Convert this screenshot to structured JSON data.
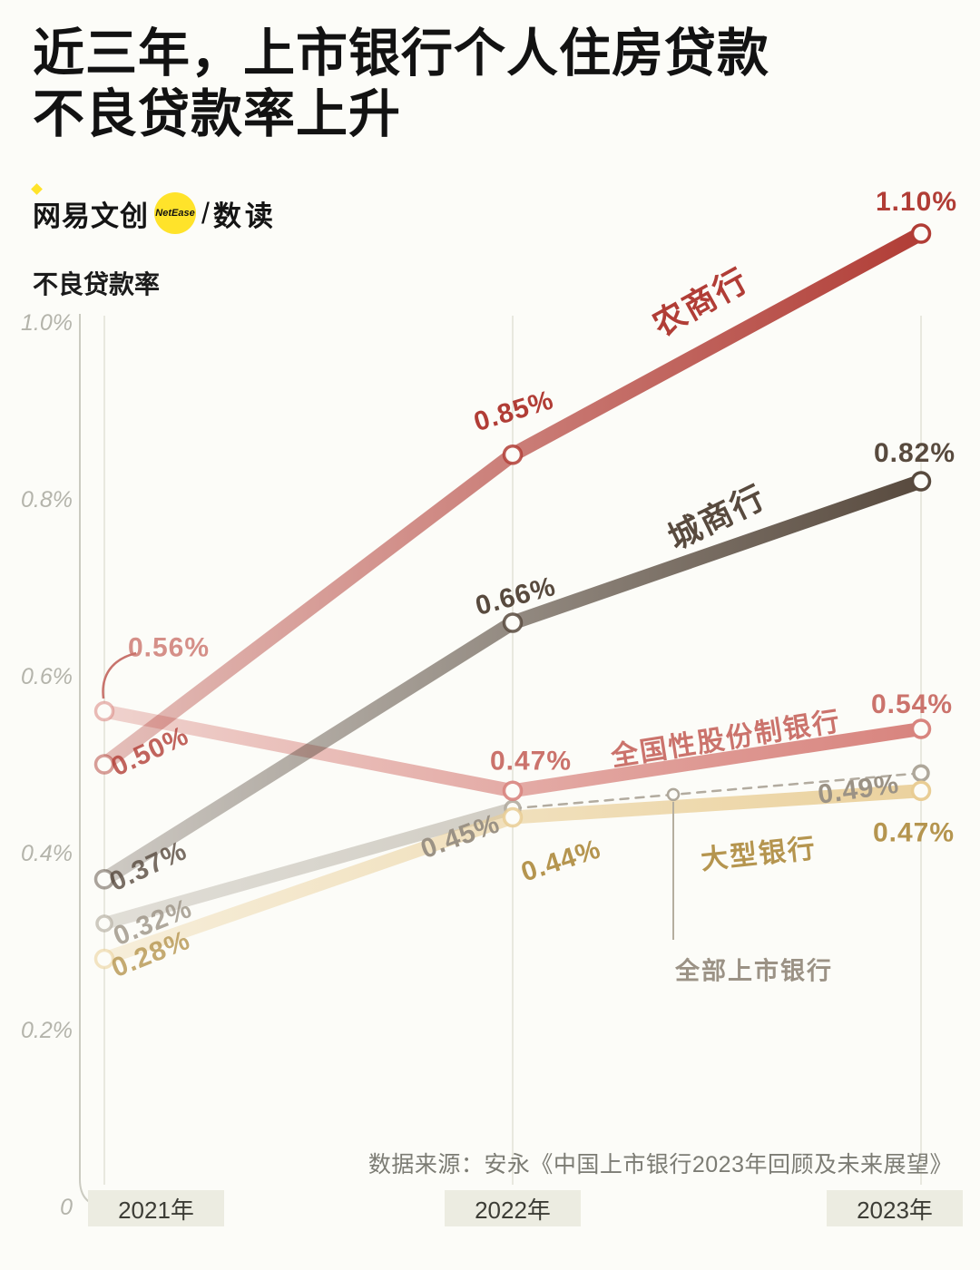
{
  "meta": {
    "title_line1": "近三年，上市银行个人住房贷款",
    "title_line2": "不良贷款率上升",
    "axis_title": "不良贷款率",
    "source": "数据来源：安永《中国上市银行2023年回顾及未来展望》"
  },
  "brand": {
    "name": "网易文创",
    "badge": "NetEase",
    "slash": "/",
    "sub": "数读",
    "badge_color": "#ffe32a"
  },
  "chart_data": {
    "type": "line",
    "title": "近三年，上市银行个人住房贷款不良贷款率上升",
    "ylabel": "不良贷款率",
    "unit": "%",
    "categories": [
      "2021年",
      "2022年",
      "2023年"
    ],
    "ylim": [
      0,
      1.15
    ],
    "grid": "vertical-only",
    "legend_position": "inline-labels",
    "yticks": [
      {
        "label": "1.0%",
        "value": 1.0
      },
      {
        "label": "0.8%",
        "value": 0.8
      },
      {
        "label": "0.6%",
        "value": 0.6
      },
      {
        "label": "0.4%",
        "value": 0.4
      },
      {
        "label": "0.2%",
        "value": 0.2
      },
      {
        "label": "0",
        "value": 0
      }
    ],
    "series": [
      {
        "id": "rural",
        "name": "农商行",
        "color": "#b13d36",
        "values": [
          0.5,
          0.85,
          1.1
        ],
        "labels": [
          "0.50%",
          "0.85%",
          "1.10%"
        ]
      },
      {
        "id": "city",
        "name": "城商行",
        "color": "#584a3e",
        "values": [
          0.37,
          0.66,
          0.82
        ],
        "labels": [
          "0.37%",
          "0.66%",
          "0.82%"
        ]
      },
      {
        "id": "jointstock",
        "name": "全国性股份制银行",
        "color": "#d8847e",
        "label_color": "#cb736c",
        "values": [
          0.56,
          0.47,
          0.54
        ],
        "labels": [
          "0.56%",
          "0.47%",
          "0.54%"
        ]
      },
      {
        "id": "large",
        "name": "大型银行",
        "color": "#e9cd94",
        "label_color": "#b5954f",
        "values": [
          0.28,
          0.44,
          0.47
        ],
        "labels": [
          "0.28%",
          "0.44%",
          "0.47%"
        ]
      },
      {
        "id": "all",
        "name": "全部上市银行",
        "color": "#aea79a",
        "label_color": "#9b9285",
        "line_style": "dashed-tail",
        "values": [
          0.32,
          0.45,
          0.49
        ],
        "labels": [
          "0.32%",
          "0.45%",
          "0.49%"
        ]
      }
    ]
  }
}
